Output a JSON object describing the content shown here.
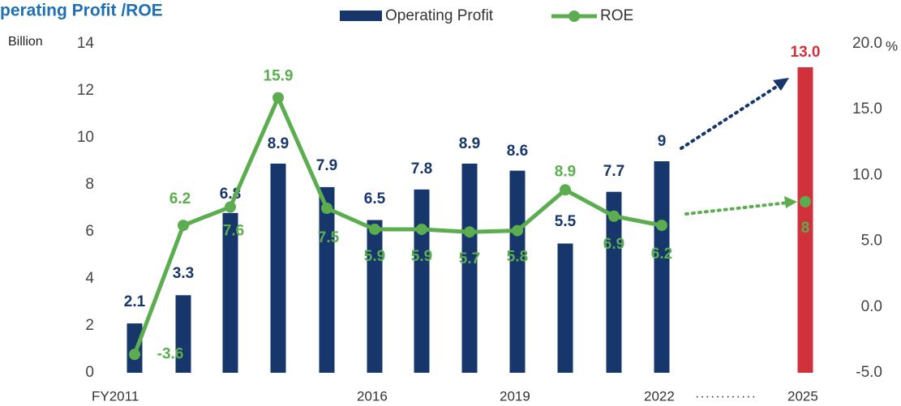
{
  "chart_data": {
    "type": "bar",
    "title": "perating Profit /ROE",
    "y_label": "Billion",
    "y2_label": "%",
    "categories": [
      "FY2011",
      null,
      null,
      null,
      null,
      "2016",
      null,
      null,
      "2019",
      null,
      null,
      "2022",
      "2025"
    ],
    "series": [
      {
        "name": "Operating Profit",
        "type": "bar",
        "color": "#17366b",
        "highlight_color": "#d0313a",
        "values": [
          2.1,
          3.3,
          6.8,
          8.9,
          7.9,
          6.5,
          7.8,
          8.9,
          8.6,
          5.5,
          7.7,
          9,
          13
        ],
        "value_labels": [
          "2.1",
          "3.3",
          "6.8",
          "8.9",
          "7.9",
          "6.5",
          "7.8",
          "8.9",
          "8.6",
          "5.5",
          "7.7",
          "9",
          "13.0"
        ]
      },
      {
        "name": "ROE",
        "type": "line",
        "axis": "y2",
        "color": "#5cad4f",
        "values": [
          -3.6,
          6.2,
          7.6,
          15.9,
          7.5,
          5.9,
          5.9,
          5.7,
          5.8,
          8.9,
          6.9,
          6.2,
          8
        ]
      }
    ],
    "ylim": [
      0,
      14
    ],
    "yticks": [
      0,
      2,
      4,
      6,
      8,
      10,
      12,
      14
    ],
    "y2lim": [
      -5,
      20
    ],
    "y2ticks": [
      {
        "value": -5,
        "label": "-5.0"
      },
      {
        "value": 0,
        "label": "0.0"
      },
      {
        "value": 5,
        "label": "5.0"
      },
      {
        "value": 10,
        "label": "10.0"
      },
      {
        "value": 15,
        "label": "15.0"
      },
      {
        "value": 20,
        "label": "20.0"
      }
    ],
    "legend": "top"
  }
}
